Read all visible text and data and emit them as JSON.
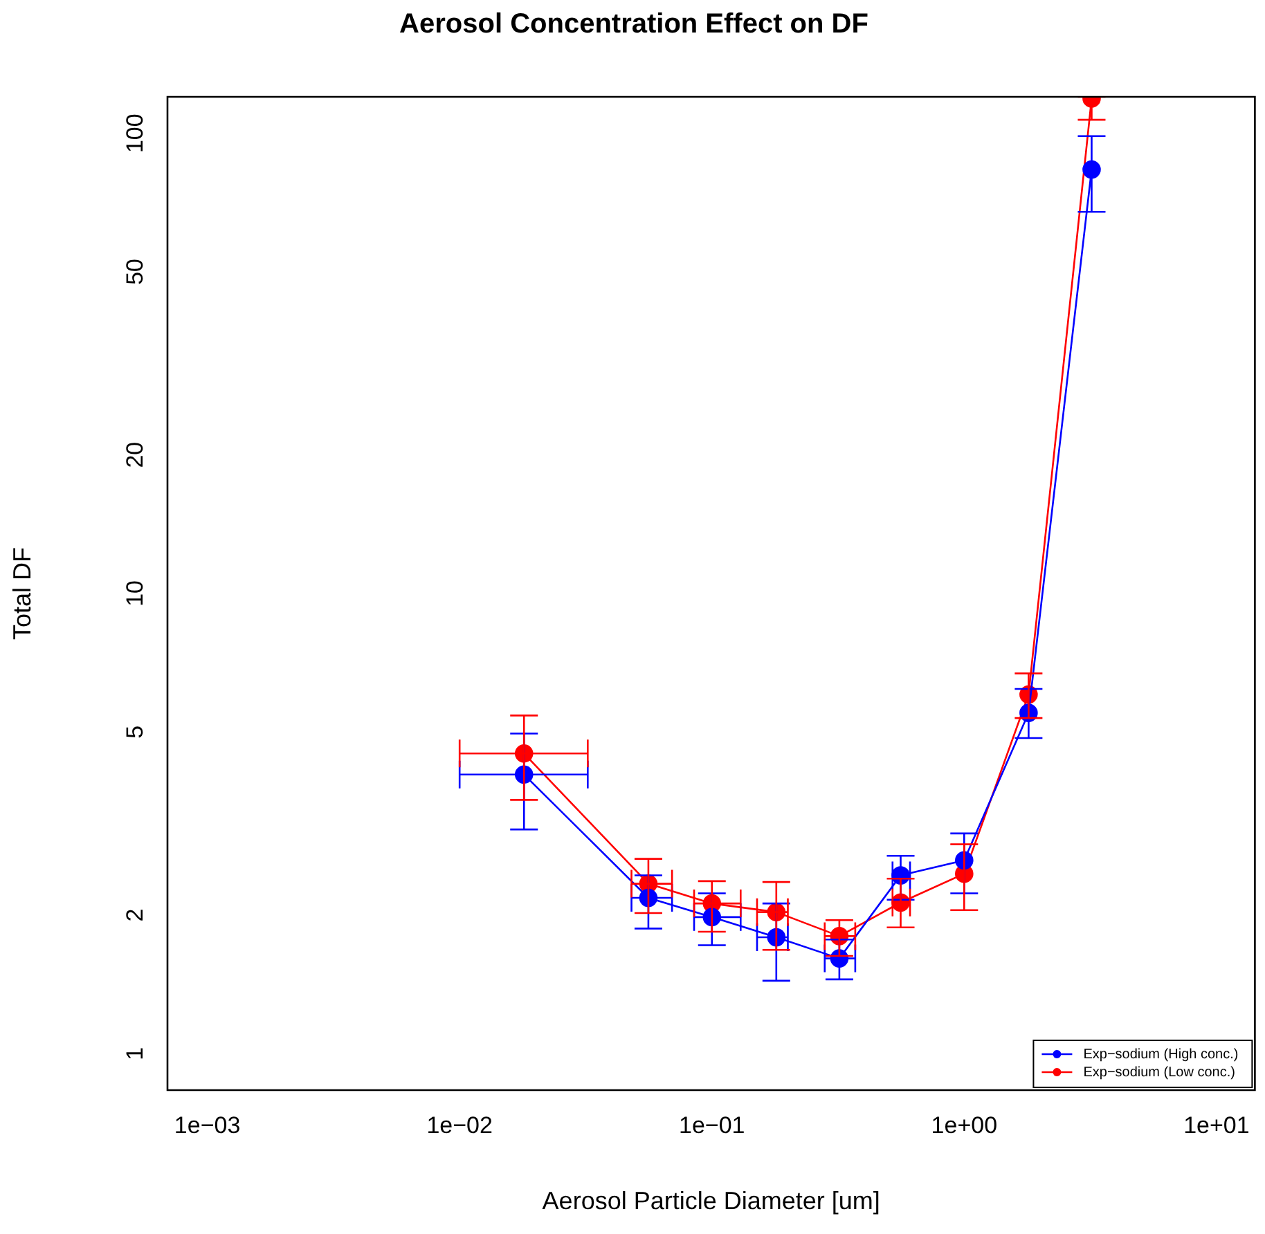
{
  "chart_data": {
    "type": "line",
    "title": "Aerosol Concentration Effect on DF",
    "xlabel": "Aerosol Particle Diameter [um]",
    "ylabel": "Total DF",
    "log": "xy",
    "grid": false,
    "legend": "bottom right",
    "marker": "circle",
    "line_style": "solid",
    "xlim": [
      0.000695,
      14.2
    ],
    "ylim": [
      0.833,
      120
    ],
    "xticks": [
      {
        "value": 0.001,
        "label": "1e−03"
      },
      {
        "value": 0.01,
        "label": "1e−02"
      },
      {
        "value": 0.1,
        "label": "1e−01"
      },
      {
        "value": 1,
        "label": "1e+00"
      },
      {
        "value": 10,
        "label": "1e+01"
      }
    ],
    "yticks": [
      1,
      2,
      5,
      10,
      20,
      50,
      100
    ],
    "series": [
      {
        "name": "Exp−sodium (High conc.)",
        "color": "#0000ff",
        "x": [
          0.018,
          0.056,
          0.1,
          0.18,
          0.32,
          0.56,
          1.0,
          1.8,
          3.2
        ],
        "values": [
          4.04,
          2.18,
          1.98,
          1.79,
          1.61,
          2.44,
          2.63,
          5.5,
          83.4
        ],
        "errors": [
          [
            3.07,
            4.96
          ],
          [
            1.87,
            2.44
          ],
          [
            1.72,
            2.23
          ],
          [
            1.44,
            2.12
          ],
          [
            1.45,
            1.77
          ],
          [
            2.16,
            2.69
          ],
          [
            2.23,
            3.01
          ],
          [
            4.85,
            6.2
          ],
          [
            67.5,
            98.6
          ]
        ],
        "xerrors": [
          [
            0.01,
            0.0322
          ],
          [
            0.048,
            0.0695
          ],
          [
            0.085,
            0.13
          ],
          [
            0.151,
            0.2
          ],
          [
            0.28,
            0.37
          ],
          [
            0.52,
            0.61
          ],
          null,
          null,
          null
        ]
      },
      {
        "name": "Exp−sodium (Low conc.)",
        "color": "#ff0000",
        "x": [
          0.018,
          0.056,
          0.1,
          0.18,
          0.32,
          0.56,
          1.0,
          1.8,
          3.2
        ],
        "values": [
          4.49,
          2.34,
          2.12,
          2.03,
          1.8,
          2.13,
          2.46,
          6.03,
          119
        ],
        "errors": [
          [
            3.56,
            5.43
          ],
          [
            2.02,
            2.65
          ],
          [
            1.84,
            2.37
          ],
          [
            1.68,
            2.36
          ],
          [
            1.63,
            1.95
          ],
          [
            1.88,
            2.4
          ],
          [
            2.05,
            2.85
          ],
          [
            5.36,
            6.7
          ],
          [
            107,
            120
          ]
        ],
        "xerrors": [
          [
            0.01,
            0.0322
          ],
          [
            0.048,
            0.0695
          ],
          [
            0.085,
            0.13
          ],
          [
            0.151,
            0.2
          ],
          [
            0.28,
            0.37
          ],
          [
            0.52,
            0.61
          ],
          null,
          null,
          null
        ]
      }
    ]
  }
}
